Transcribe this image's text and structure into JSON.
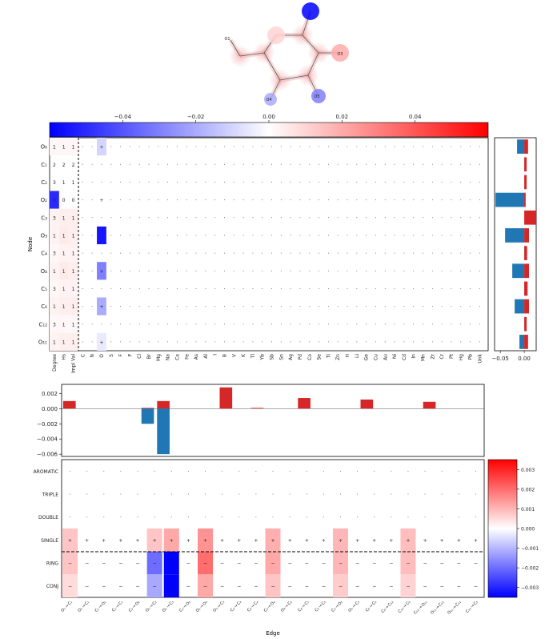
{
  "chart_data": [
    {
      "type": "diagram",
      "atoms": [
        "O6",
        "O1",
        "O2",
        "O3",
        "O4",
        "O5"
      ],
      "atom_labels": [
        "O1",
        "O3",
        "O4",
        "O5"
      ],
      "atom_attributions": [
        0.0,
        -0.06,
        0.02,
        -0.03,
        -0.02,
        0.01
      ]
    },
    {
      "type": "heatmap",
      "colorbar": {
        "min": -0.06,
        "max": 0.06,
        "ticks": [
          -0.04,
          -0.02,
          0.0,
          0.02,
          0.04
        ],
        "tick_labels": [
          "−0.04",
          "−0.02",
          "0.00",
          "0.02",
          "0.04"
        ]
      },
      "ylabel": "Node",
      "rows": [
        "O6",
        "C1",
        "C2",
        "O2",
        "C3",
        "O3",
        "C4",
        "O4",
        "C5",
        "C6",
        "C12",
        "O11"
      ],
      "row_labels_display": [
        "O₆",
        "C₁",
        "C₂",
        "O₂",
        "C₃",
        "O₃",
        "C₄",
        "O₄",
        "C₅",
        "C₆",
        "C₁₂",
        "O₁₁"
      ],
      "columns": [
        "Degree",
        "Hs",
        "Impl Val",
        "C",
        "N",
        "O",
        "S",
        "F",
        "P",
        "Cl",
        "Br",
        "Mg",
        "Na",
        "Ca",
        "Fe",
        "As",
        "Al",
        "I",
        "B",
        "V",
        "K",
        "Tl",
        "Yb",
        "Sb",
        "Sn",
        "Ag",
        "Pd",
        "Co",
        "Se",
        "Ti",
        "Zn",
        "H",
        "Li",
        "Ge",
        "Cu",
        "Au",
        "Ni",
        "Cd",
        "In",
        "Mn",
        "Zr",
        "Cr",
        "Pt",
        "Hg",
        "Pb",
        "Unk"
      ],
      "cell_text": [
        [
          "1",
          "1",
          "1"
        ],
        [
          "2",
          "2",
          "2"
        ],
        [
          "3",
          "1",
          "1"
        ],
        [
          "0",
          "0",
          "0"
        ],
        [
          "3",
          "1",
          "1"
        ],
        [
          "1",
          "1",
          "1"
        ],
        [
          "3",
          "1",
          "1"
        ],
        [
          "1",
          "1",
          "1"
        ],
        [
          "3",
          "1",
          "1"
        ],
        [
          "1",
          "1",
          "1"
        ],
        [
          "3",
          "1",
          "1"
        ],
        [
          "1",
          "1",
          "1"
        ]
      ],
      "marker_column": "O",
      "attributions": {
        "Degree": [
          0.002,
          0.0,
          0.0,
          -0.05,
          0.003,
          0.003,
          0.002,
          0.003,
          0.002,
          0.003,
          0.002,
          0.003
        ],
        "Hs": [
          0.002,
          0.0,
          0.0,
          0.0,
          0.004,
          0.005,
          0.003,
          0.005,
          0.003,
          0.004,
          0.002,
          0.004
        ],
        "Impl Val": [
          0.002,
          0.0,
          0.0,
          0.0,
          0.004,
          0.004,
          0.003,
          0.004,
          0.003,
          0.004,
          0.002,
          0.004
        ],
        "O": [
          -0.01,
          0.0,
          0.0,
          0.0,
          0.0,
          -0.055,
          0.0,
          -0.03,
          0.0,
          -0.02,
          0.0,
          -0.005
        ]
      }
    },
    {
      "type": "bar",
      "orientation": "horizontal",
      "categories": [
        "O6",
        "C1",
        "C2",
        "O2",
        "C3",
        "O3",
        "C4",
        "O4",
        "C5",
        "C6",
        "C12",
        "O11"
      ],
      "values_neg": [
        -0.015,
        0.0,
        0.0,
        -0.06,
        0.0,
        -0.04,
        0.0,
        -0.025,
        0.0,
        -0.02,
        0.0,
        -0.01
      ],
      "values_pos": [
        0.008,
        0.005,
        0.005,
        0.003,
        0.025,
        0.01,
        0.006,
        0.01,
        0.007,
        0.01,
        0.005,
        0.008
      ],
      "xticks": [
        -0.05,
        0.0
      ],
      "xtick_labels": [
        "−0.05",
        "0.00"
      ]
    },
    {
      "type": "bar",
      "categories": [
        "O6-C5",
        "C5-O5",
        "C5-C6",
        "C5-C4",
        "C4-O4",
        "O4-C3",
        "C3-C2",
        "C2-O3",
        "C2-C1",
        "C1-O1",
        "O1-C12",
        "C12-O11",
        "O11-C12",
        "C12-C5",
        "C5-C4",
        "C4-O4",
        "O4-C3",
        "C3-C2",
        "C2-O1",
        "O1-C1",
        "C1-C12",
        "C12-O11",
        "O11-C1",
        "C1-C5",
        "C5-O6",
        "O6-C6",
        "C6-C12"
      ],
      "values_pos": [
        0.001,
        0.0,
        0.0,
        0.0,
        0.0,
        0.0001,
        0.001,
        0.0,
        0.0,
        0.0,
        0.0028,
        0.0,
        0.0001,
        0.0,
        0.0,
        0.0014,
        0.0,
        0.0,
        0.0,
        0.0012,
        0.0,
        0.0,
        0.0,
        0.0009,
        0.0,
        0.0,
        0.0
      ],
      "values_neg": [
        0.0,
        0.0,
        0.0,
        0.0,
        0.0,
        -0.002,
        -0.006,
        0.0,
        0.0,
        0.0,
        0.0,
        0.0,
        0.0,
        0.0,
        0.0,
        0.0,
        0.0,
        0.0,
        0.0,
        0.0,
        0.0,
        0.0,
        0.0,
        0.0,
        0.0,
        0.0,
        0.0
      ],
      "yticks": [
        0.002,
        0.0,
        -0.002,
        -0.004,
        -0.006
      ],
      "ytick_labels": [
        "0.002",
        "0.000",
        "−0.002",
        "−0.004",
        "−0.006"
      ]
    },
    {
      "type": "heatmap",
      "xlabel": "Edge",
      "rows": [
        "AROMATIC",
        "TRIPLE",
        "DOUBLE",
        "SINGLE",
        "Ring",
        "Conj"
      ],
      "row_labels_display": [
        "AROMATIC",
        "TRIPLE",
        "DOUBLE",
        "SINGLE",
        "RING",
        "CONJ"
      ],
      "edge_labels": [
        "O₁ → C₁",
        "O₁ → C₁",
        "C₁ → O₁",
        "C₁ → C₁",
        "C₂ → O₂",
        "O₁ → C₂",
        "O₁ → C₃",
        "C₃ → O₃",
        "O₁ → O₃",
        "O₃ → C₃",
        "C₃ → C₄",
        "C₄ → C₄",
        "C₄ → O₄",
        "O₄ → C₄",
        "C₄ → C₅",
        "C₅ → C₅",
        "C₅ → O₅",
        "O₅ → C₅",
        "C₅ → C₆",
        "C₆ → C₁₂",
        "C₁₂ → C₆",
        "C₁₂ → O₁₁",
        "O₁₁ → C₁₂",
        "O₁₁ → C₁₂",
        "C₁₂ → C₅"
      ],
      "colorbar": {
        "min": -0.0035,
        "max": 0.0035,
        "ticks": [
          0.003,
          0.002,
          0.001,
          0.0,
          -0.001,
          -0.002,
          -0.003
        ],
        "tick_labels": [
          "0.003",
          "0.002",
          "0.001",
          "0.000",
          "−0.001",
          "−0.002",
          "−0.003"
        ]
      },
      "attributions": {
        "SINGLE": [
          0.0008,
          0.0,
          0.0,
          0.0,
          0.0,
          0.0008,
          0.0012,
          0.0,
          0.0015,
          0.0,
          0.0,
          0.0,
          0.0011,
          0.0,
          0.0,
          0.0,
          0.001,
          0.0,
          0.0,
          0.0,
          0.0009,
          0.0,
          0.0,
          0.0,
          0.0
        ],
        "Ring": [
          0.0008,
          0.0,
          0.0,
          0.0,
          0.0,
          -0.002,
          -0.0038,
          0.0,
          0.002,
          0.0,
          0.0,
          0.0,
          0.0012,
          0.0,
          0.0,
          0.0,
          0.001,
          0.0,
          0.0,
          0.0,
          0.0009,
          0.0,
          0.0,
          0.0,
          0.0
        ],
        "Conj": [
          0.0005,
          0.0,
          0.0,
          0.0,
          0.0,
          -0.0012,
          -0.0035,
          0.0,
          0.0012,
          0.0,
          0.0,
          0.0,
          0.0008,
          0.0,
          0.0,
          0.0,
          0.0007,
          0.0,
          0.0,
          0.0,
          0.0006,
          0.0,
          0.0,
          0.0,
          0.0
        ]
      }
    }
  ]
}
